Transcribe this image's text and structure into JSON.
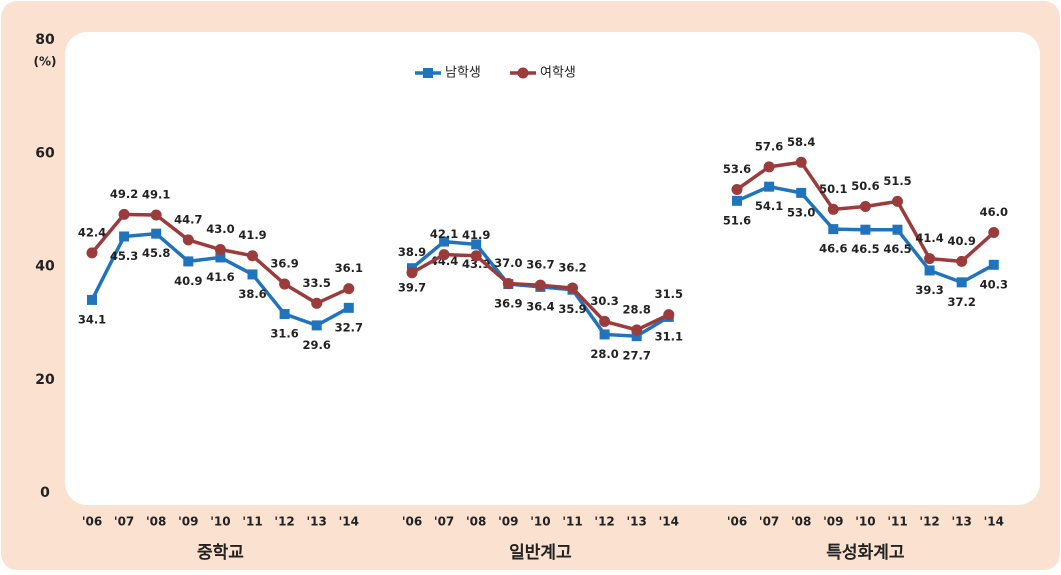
{
  "chart_data": {
    "type": "line",
    "y_unit": "(%)",
    "ylim": [
      0,
      80
    ],
    "yticks": [
      0,
      20,
      40,
      60,
      80
    ],
    "groups": [
      "중학교",
      "일반계고",
      "특성화계고"
    ],
    "categories": [
      "'06",
      "'07",
      "'08",
      "'09",
      "'10",
      "'11",
      "'12",
      "'13",
      "'14",
      "'06",
      "'07",
      "'08",
      "'09",
      "'10",
      "'11",
      "'12",
      "'13",
      "'14",
      "'06",
      "'07",
      "'08",
      "'09",
      "'10",
      "'11",
      "'12",
      "'13",
      "'14"
    ],
    "series": [
      {
        "name": "남학생",
        "color": "#1f74bd",
        "values": [
          34.1,
          45.3,
          45.8,
          40.9,
          41.6,
          38.6,
          31.6,
          29.6,
          32.7,
          39.7,
          44.4,
          43.9,
          36.9,
          36.4,
          35.9,
          28.0,
          27.7,
          31.1,
          51.6,
          54.1,
          53.0,
          46.6,
          46.5,
          46.5,
          39.3,
          37.2,
          40.3
        ],
        "value_labels": [
          "34.1",
          "45.3",
          "45.8",
          "40.9",
          "41.6",
          "38.6",
          "31.6",
          "29.6",
          "32.7",
          "39.7",
          "44.4",
          "43.9",
          "36.9",
          "36.4",
          "35.9",
          "28.0",
          "27.7",
          "31.1",
          "51.6",
          "54.1",
          "53.0",
          "46.6",
          "46.5",
          "46.5",
          "39.3",
          "37.2",
          "40.3"
        ]
      },
      {
        "name": "여학생",
        "color": "#9c3b3b",
        "values": [
          42.4,
          49.2,
          49.1,
          44.7,
          43.0,
          41.9,
          36.9,
          33.5,
          36.1,
          38.9,
          42.1,
          41.9,
          37.0,
          36.7,
          36.2,
          30.3,
          28.8,
          31.5,
          53.6,
          57.6,
          58.4,
          50.1,
          50.6,
          51.5,
          41.4,
          40.9,
          46.0
        ],
        "value_labels": [
          "42.4",
          "49.2",
          "49.1",
          "44.7",
          "43.0",
          "41.9",
          "36.9",
          "33.5",
          "36.1",
          "38.9",
          "42.1",
          "41.9",
          "37.0",
          "36.7",
          "36.2",
          "30.3",
          "28.8",
          "31.5",
          "53.6",
          "57.6",
          "58.4",
          "50.1",
          "50.6",
          "51.5",
          "41.4",
          "40.9",
          "46.0"
        ]
      }
    ]
  }
}
